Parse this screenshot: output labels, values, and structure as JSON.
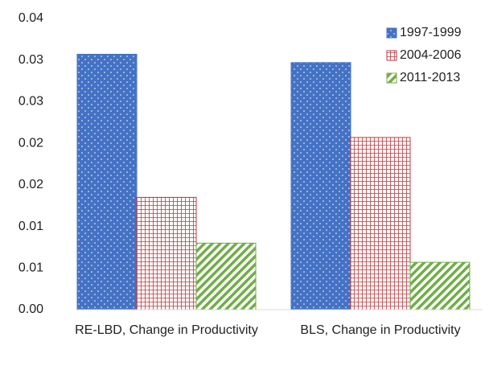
{
  "chart_data": {
    "type": "bar",
    "categories": [
      "RE-LBD, Change in Productivity",
      "BLS, Change in Productivity"
    ],
    "series": [
      {
        "name": "1997-1999",
        "color": "#4472c4",
        "values": [
          0.0307,
          0.0297
        ]
      },
      {
        "name": "2004-2006",
        "color": "#c0393b",
        "values": [
          0.0135,
          0.0207
        ]
      },
      {
        "name": "2011-2013",
        "color": "#70ad47",
        "values": [
          0.008,
          0.0057
        ]
      }
    ],
    "ylim": [
      0,
      0.035
    ],
    "yticks": [
      {
        "value": 0,
        "label": "0.00"
      },
      {
        "value": 0.005,
        "label": "0.01"
      },
      {
        "value": 0.01,
        "label": "0.01"
      },
      {
        "value": 0.015,
        "label": "0.02"
      },
      {
        "value": 0.02,
        "label": "0.02"
      },
      {
        "value": 0.025,
        "label": "0.03"
      },
      {
        "value": 0.03,
        "label": "0.03"
      },
      {
        "value": 0.035,
        "label": "0.04"
      }
    ],
    "legend": "top-right"
  }
}
